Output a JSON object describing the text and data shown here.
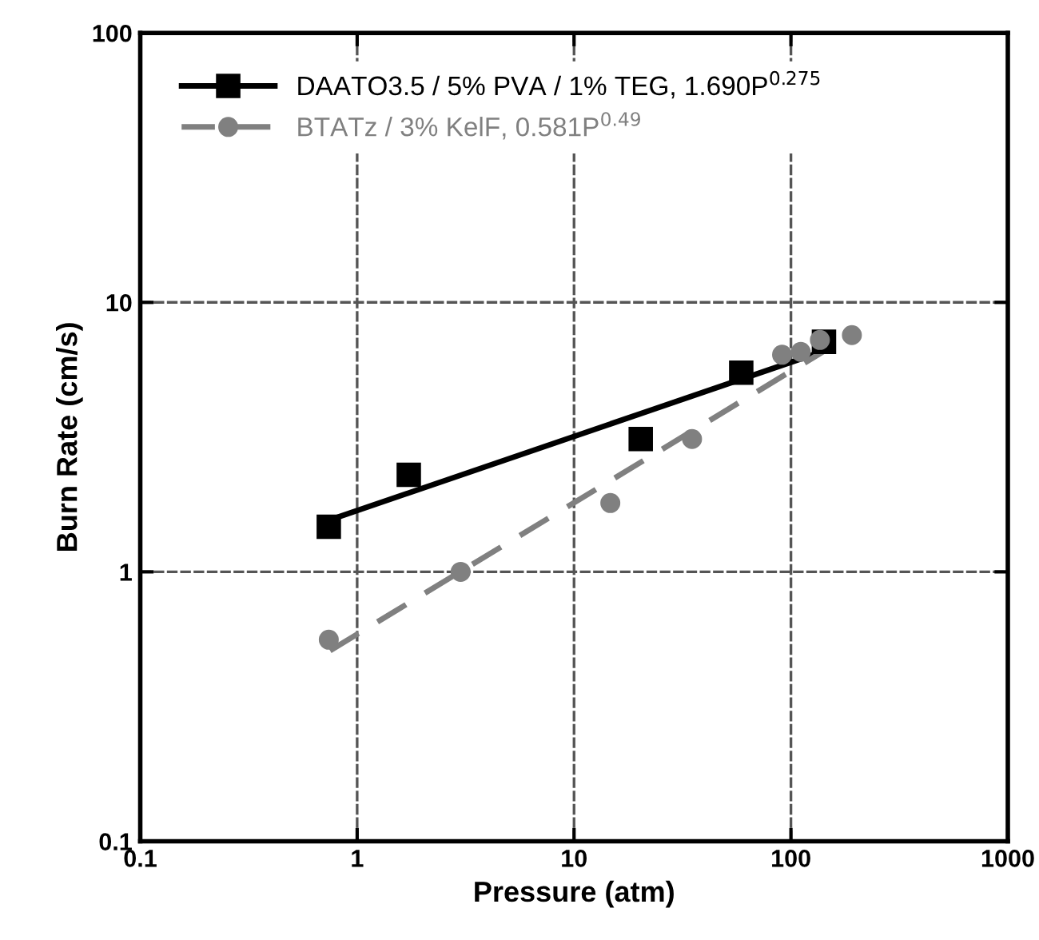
{
  "chart_data": {
    "type": "scatter",
    "xlabel": "Pressure (atm)",
    "ylabel": "Burn Rate (cm/s)",
    "log": "xy",
    "xlim": [
      0.1,
      1000
    ],
    "ylim": [
      0.1,
      100
    ],
    "xticks": [
      0.1,
      1,
      10,
      100,
      1000
    ],
    "yticks": [
      0.1,
      1,
      10,
      100
    ],
    "grid": true,
    "legend": "top left",
    "series": [
      {
        "name": "DAATO3.5 / 5% PVA / 1% TEG, 1.690P$^{0.275}$",
        "marker": "square",
        "color": "#000000",
        "x": [
          0.74,
          1.73,
          20.3,
          59,
          142
        ],
        "values": [
          1.47,
          2.29,
          3.11,
          5.48,
          7.14
        ]
      },
      {
        "type": "line",
        "line_style": "solid",
        "marker": "none",
        "color": "#000000",
        "x": [
          0.75,
          142
        ],
        "values": [
          1.56,
          6.6
        ]
      },
      {
        "name": "BTATz / 3% KelF, 0.581P$^{0.49}$",
        "marker": "circle",
        "color": "#808080",
        "x": [
          0.74,
          3.0,
          14.7,
          35,
          91,
          111,
          136,
          191
        ],
        "values": [
          0.56,
          1.0,
          1.8,
          3.11,
          6.39,
          6.55,
          7.25,
          7.56
        ]
      },
      {
        "type": "line",
        "line_style": "dashed",
        "marker": "none",
        "color": "#808080",
        "x": [
          0.75,
          190
        ],
        "values": [
          0.51,
          7.6
        ]
      }
    ]
  }
}
